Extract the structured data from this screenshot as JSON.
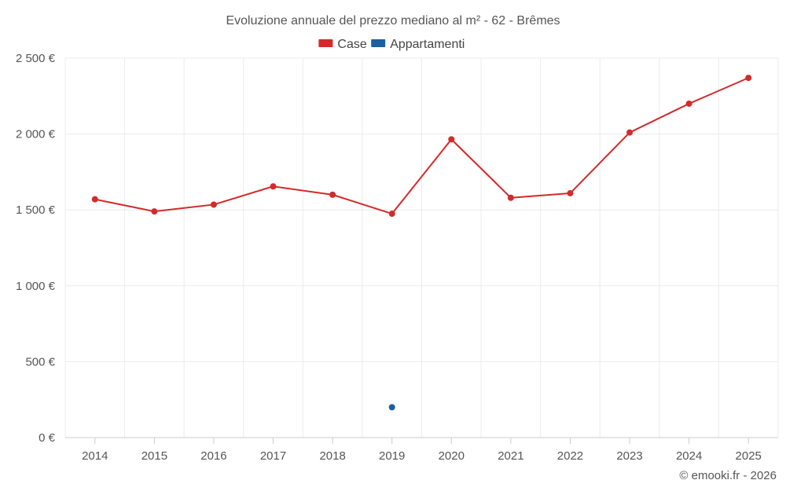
{
  "chart_data": {
    "type": "line",
    "title": "Evoluzione annuale del prezzo mediano al m² - 62 - Brêmes",
    "categories": [
      "2014",
      "2015",
      "2016",
      "2017",
      "2018",
      "2019",
      "2020",
      "2021",
      "2022",
      "2023",
      "2024",
      "2025"
    ],
    "series": [
      {
        "name": "Case",
        "color": "#d42a2a",
        "values": [
          1570,
          1490,
          1535,
          1655,
          1600,
          1475,
          1965,
          1580,
          1610,
          2010,
          2200,
          2370
        ]
      },
      {
        "name": "Appartamenti",
        "color": "#1a5fa0",
        "values": [
          null,
          null,
          null,
          null,
          null,
          200,
          null,
          null,
          null,
          null,
          null,
          null
        ]
      }
    ],
    "ylim": [
      0,
      2500
    ],
    "yticks": [
      0,
      500,
      1000,
      1500,
      2000,
      2500
    ],
    "ytick_labels": [
      "0 €",
      "500 €",
      "1 000 €",
      "1 500 €",
      "2 000 €",
      "2 500 €"
    ],
    "xlabel": "",
    "ylabel": "",
    "grid": true,
    "legend_position": "top-center"
  },
  "credit": "© emooki.fr - 2026"
}
